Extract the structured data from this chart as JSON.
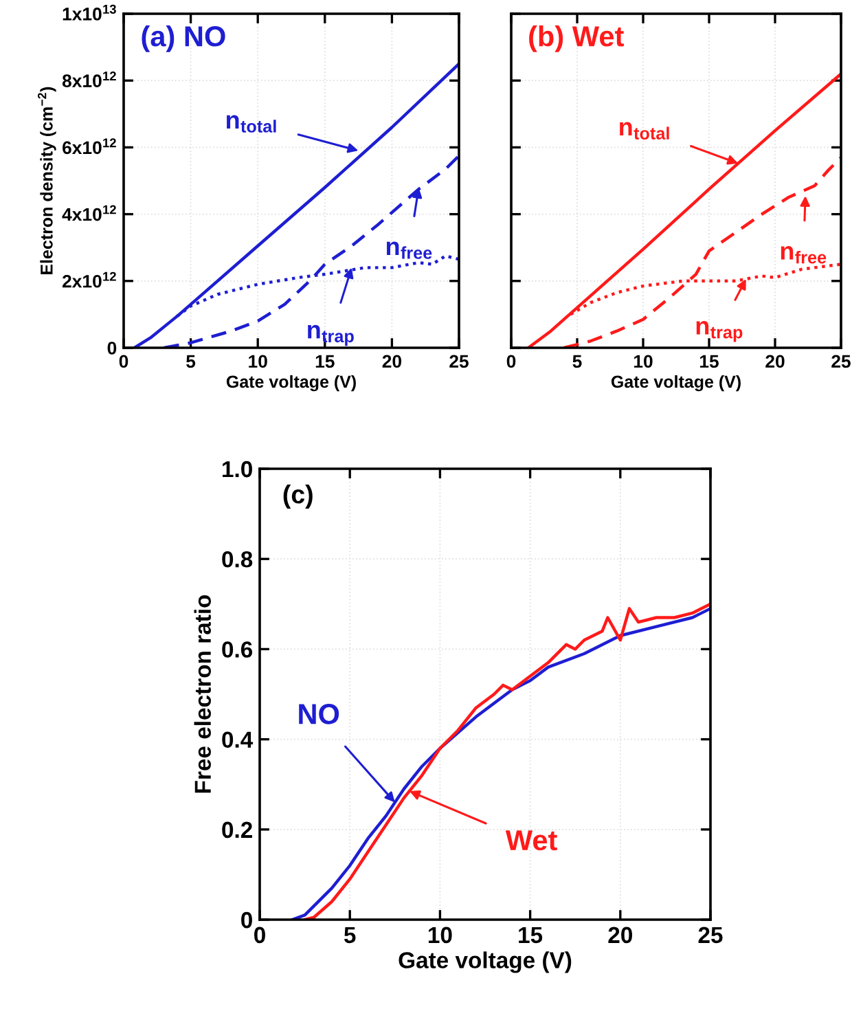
{
  "chart_data": [
    {
      "type": "line",
      "title": "(a) NO",
      "xlabel": "Gate voltage (V)",
      "ylabel": "Electron density (cm$^{−2}$)",
      "xlim": [
        0,
        25
      ],
      "xticks": [
        0,
        5,
        10,
        15,
        20,
        25
      ],
      "ylim": [
        0,
        10000000000000.0
      ],
      "yticks": [
        0,
        {
          "value": 2000000000000.0,
          "label": "2x10$^{12}$"
        },
        {
          "value": 4000000000000.0,
          "label": "4x10$^{12}$"
        },
        {
          "value": 6000000000000.0,
          "label": "6x10$^{12}$"
        },
        {
          "value": 8000000000000.0,
          "label": "8x10$^{12}$"
        },
        {
          "value": 10000000000000.0,
          "label": "1x10$^{13}$"
        }
      ],
      "grid": true,
      "series": [
        {
          "color": "#1e1ed2",
          "line_style": "solid",
          "x": [
            0.8,
            2,
            4,
            5,
            10,
            15,
            20,
            25
          ],
          "values": [
            0,
            300000000000.0,
            950000000000.0,
            1300000000000.0,
            3050000000000.0,
            4800000000000.0,
            6600000000000.0,
            8500000000000.0
          ]
        },
        {
          "color": "#1e1ed2",
          "line_style": "dashed",
          "x": [
            3,
            5,
            8,
            10,
            12,
            14,
            15,
            17,
            19,
            20,
            22,
            24,
            25
          ],
          "values": [
            0,
            150000000000.0,
            500000000000.0,
            800000000000.0,
            1300000000000.0,
            2050000000000.0,
            2500000000000.0,
            3050000000000.0,
            3700000000000.0,
            4050000000000.0,
            4750000000000.0,
            5350000000000.0,
            5750000000000.0
          ]
        },
        {
          "color": "#1e1ed2",
          "line_style": "dotted",
          "x": [
            4,
            5,
            7,
            10,
            13,
            15,
            18,
            20,
            22,
            23,
            24,
            25
          ],
          "values": [
            950000000000.0,
            1250000000000.0,
            1600000000000.0,
            1900000000000.0,
            2100000000000.0,
            2200000000000.0,
            2400000000000.0,
            2400000000000.0,
            2550000000000.0,
            2500000000000.0,
            2750000000000.0,
            2650000000000.0
          ]
        }
      ],
      "annotations": [
        {
          "text": "n$_{total}$",
          "x": 17.5,
          "y": 5900000000000.0
        },
        {
          "text": "n$_{free}$",
          "x": 22,
          "y": 4800000000000.0
        },
        {
          "text": "n$_{trap}$",
          "x": 17,
          "y": 2400000000000.0
        }
      ]
    },
    {
      "type": "line",
      "title": "(b) Wet",
      "xlabel": "Gate voltage (V)",
      "xlim": [
        0,
        25
      ],
      "xticks": [
        0,
        5,
        10,
        15,
        20,
        25
      ],
      "ylim": [
        0,
        10000000000000.0
      ],
      "yticks": [
        {
          "value": 0,
          "label": null
        },
        {
          "value": 2000000000000.0,
          "label": null
        },
        {
          "value": 4000000000000.0,
          "label": null
        },
        {
          "value": 6000000000000.0,
          "label": null
        },
        {
          "value": 8000000000000.0,
          "label": null
        },
        {
          "value": 10000000000000.0,
          "label": null
        }
      ],
      "tick_labels": "x",
      "grid": true,
      "series": [
        {
          "color": "#ff1a1a",
          "line_style": "solid",
          "x": [
            1.3,
            3,
            5,
            10,
            15,
            20,
            25
          ],
          "values": [
            0,
            500000000000.0,
            1200000000000.0,
            2950000000000.0,
            4750000000000.0,
            6500000000000.0,
            8200000000000.0
          ]
        },
        {
          "color": "#ff1a1a",
          "line_style": "dashed",
          "x": [
            4,
            6,
            8,
            10,
            12,
            14,
            15,
            17,
            19,
            21,
            23,
            24,
            25
          ],
          "values": [
            0,
            200000000000.0,
            500000000000.0,
            850000000000.0,
            1500000000000.0,
            2200000000000.0,
            2900000000000.0,
            3450000000000.0,
            4000000000000.0,
            4500000000000.0,
            4850000000000.0,
            5300000000000.0,
            5700000000000.0
          ]
        },
        {
          "color": "#ff1a1a",
          "line_style": "dotted",
          "x": [
            4.5,
            6,
            8,
            10,
            13,
            15,
            17,
            19,
            20,
            22,
            25
          ],
          "values": [
            1000000000000.0,
            1350000000000.0,
            1650000000000.0,
            1850000000000.0,
            2000000000000.0,
            2000000000000.0,
            2000000000000.0,
            2150000000000.0,
            2100000000000.0,
            2350000000000.0,
            2500000000000.0
          ]
        }
      ],
      "annotations": [
        {
          "text": "n$_{total}$",
          "x": 17.2,
          "y": 5520000000000.0
        },
        {
          "text": "n$_{free}$",
          "x": 22.3,
          "y": 4550000000000.0
        },
        {
          "text": "n$_{trap}$",
          "x": 17.8,
          "y": 2060000000000.0
        }
      ]
    },
    {
      "type": "line",
      "title": "(c)",
      "xlabel": "Gate voltage (V)",
      "ylabel": "Free electron ratio",
      "xlim": [
        0,
        25
      ],
      "xticks": [
        0,
        5,
        10,
        15,
        20,
        25
      ],
      "ylim": [
        0,
        1.0
      ],
      "yticks": [
        0,
        0.2,
        0.4,
        0.6,
        0.8,
        {
          "value": 1.0,
          "label": "1.0"
        }
      ],
      "grid": true,
      "series": [
        {
          "color": "#1e1ed2",
          "line_style": "solid",
          "x": [
            1.8,
            2.5,
            4,
            5,
            6,
            7,
            8,
            9,
            10,
            12,
            14,
            15,
            16,
            18,
            20,
            22,
            24,
            25
          ],
          "values": [
            0,
            0.01,
            0.07,
            0.12,
            0.18,
            0.23,
            0.29,
            0.34,
            0.38,
            0.45,
            0.51,
            0.53,
            0.56,
            0.59,
            0.63,
            0.65,
            0.67,
            0.69
          ]
        },
        {
          "color": "#ff1a1a",
          "line_style": "solid",
          "x": [
            2.5,
            3,
            4,
            5,
            6,
            7,
            8,
            9,
            10,
            11,
            12,
            13,
            13.5,
            14,
            15,
            16,
            17,
            17.5,
            18,
            19,
            19.3,
            20,
            20.5,
            21,
            22,
            23,
            24,
            25
          ],
          "values": [
            0,
            0.005,
            0.04,
            0.09,
            0.15,
            0.21,
            0.27,
            0.32,
            0.38,
            0.42,
            0.47,
            0.5,
            0.52,
            0.51,
            0.54,
            0.57,
            0.61,
            0.6,
            0.62,
            0.64,
            0.67,
            0.62,
            0.69,
            0.66,
            0.67,
            0.67,
            0.68,
            0.7
          ]
        }
      ],
      "annotations": [
        {
          "text": "NO",
          "x": 7.5,
          "y": 0.26
        },
        {
          "text": "Wet",
          "x": 8.3,
          "y": 0.285
        }
      ]
    }
  ]
}
